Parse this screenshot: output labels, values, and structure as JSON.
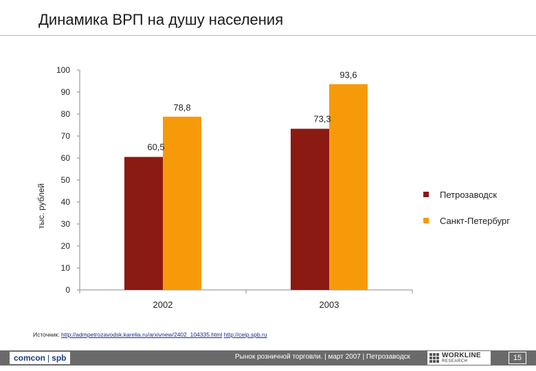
{
  "title": "Динамика ВРП на душу населения",
  "chart_data": {
    "type": "bar",
    "title": "Динамика ВРП на душу населения",
    "ylabel": "тыс. рублей",
    "xlabel": "",
    "ylim": [
      0,
      100
    ],
    "yticks": [
      0,
      10,
      20,
      30,
      40,
      50,
      60,
      70,
      80,
      90,
      100
    ],
    "categories": [
      "2002",
      "2003"
    ],
    "series": [
      {
        "name": "Петрозаводск",
        "values": [
          60.5,
          73.3
        ],
        "labels": [
          "60,5",
          "73,3"
        ],
        "color": "#8b1a12"
      },
      {
        "name": "Санкт-Петербург",
        "values": [
          78.8,
          93.6
        ],
        "labels": [
          "78,8",
          "93,6"
        ],
        "color": "#f79a0a"
      }
    ],
    "legend_position": "right"
  },
  "source": {
    "prefix": "Источник:",
    "link1": "http://admpetrozavodsk.karelia.ru/arxivnew/2402_104335.html",
    "link2": "http://ceip.spb.ru"
  },
  "footer": {
    "logo_left": "comcon",
    "logo_right": "spb",
    "text": "Рынок розничной торговли. | март 2007 | Петрозаводск",
    "wl_main": "WORKLINE",
    "wl_sub": "RESEARCH",
    "page": "15"
  }
}
